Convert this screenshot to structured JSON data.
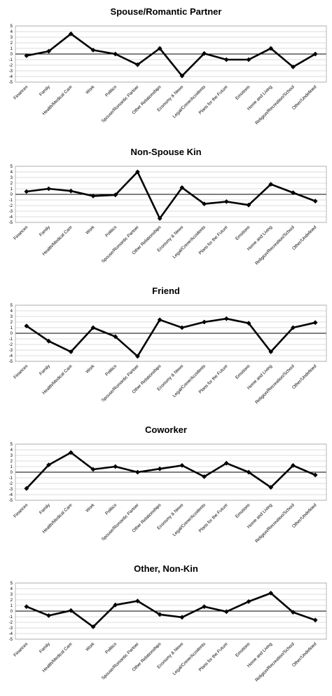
{
  "chart_data": [
    {
      "type": "line",
      "title": "Spouse/Romantic Partner",
      "ylim": [
        -5,
        5
      ],
      "yticks": [
        "5",
        "4",
        "3",
        "2",
        "1",
        "0",
        "-1",
        "-2",
        "-3",
        "-4",
        "-5"
      ],
      "grid": true,
      "categories": [
        "Finances",
        "Family",
        "Health/Medical Care",
        "Work",
        "Politics",
        "Spouse/Romantic Partner",
        "Other Relationships",
        "Economy & News",
        "Legal/Crime/Accidents",
        "Plans for the Future",
        "Emotions",
        "Home and Living",
        "Religion/Recreation/School",
        "Other/Undefined"
      ],
      "values": [
        -0.3,
        0.5,
        3.6,
        0.7,
        0.0,
        -1.9,
        1.0,
        -3.9,
        0.1,
        -1.0,
        -1.0,
        1.0,
        -2.3,
        0.0
      ]
    },
    {
      "type": "line",
      "title": "Non-Spouse Kin",
      "ylim": [
        -5,
        5
      ],
      "yticks": [
        "5",
        "4",
        "3",
        "2",
        "1",
        "0",
        "-1",
        "-2",
        "-3",
        "-4",
        "-5"
      ],
      "grid": true,
      "categories": [
        "Finances",
        "Family",
        "Health/Medical Care",
        "Work",
        "Politics",
        "Spouse/Romantic Partner",
        "Other Relationships",
        "Economy & News",
        "Legal/Crime/Accidents",
        "Plans for the Future",
        "Emotions",
        "Home and Living",
        "Religion/Recreation/School",
        "Other/Undefined"
      ],
      "values": [
        0.5,
        1.0,
        0.6,
        -0.3,
        -0.1,
        4.0,
        -4.3,
        1.2,
        -1.7,
        -1.3,
        -1.9,
        1.8,
        0.3,
        -1.2
      ]
    },
    {
      "type": "line",
      "title": "Friend",
      "ylim": [
        -5,
        5
      ],
      "yticks": [
        "5",
        "4",
        "3",
        "2",
        "1",
        "0",
        "-1",
        "-2",
        "-3",
        "-4",
        "-5"
      ],
      "grid": true,
      "categories": [
        "Finances",
        "Family",
        "Health/Medical Care",
        "Work",
        "Politics",
        "Spouse/Romantic Partner",
        "Other Relationships",
        "Economy & News",
        "Legal/Crime/Accidents",
        "Plans for the Future",
        "Emotions",
        "Home and Living",
        "Religion/Recreation/School",
        "Other/Undefined"
      ],
      "values": [
        1.3,
        -1.4,
        -3.3,
        1.0,
        -0.6,
        -4.1,
        2.4,
        1.0,
        2.0,
        2.6,
        1.8,
        -3.3,
        1.0,
        1.9
      ]
    },
    {
      "type": "line",
      "title": "Coworker",
      "ylim": [
        -5,
        5
      ],
      "yticks": [
        "5",
        "4",
        "3",
        "2",
        "1",
        "0",
        "-1",
        "-2",
        "-3",
        "-4",
        "-5"
      ],
      "grid": true,
      "categories": [
        "Finances",
        "Family",
        "Health/Medical Care",
        "Work",
        "Politics",
        "Spouse/Romantic Partner",
        "Other Relationships",
        "Economy & News",
        "Legal/Crime/Accidents",
        "Plans for the Future",
        "Emotions",
        "Home and Living",
        "Religion/Recreation/School",
        "Other/Undefined"
      ],
      "values": [
        -2.9,
        1.3,
        3.5,
        0.5,
        1.0,
        0.0,
        0.6,
        1.2,
        -0.8,
        1.6,
        0.0,
        -2.7,
        1.2,
        -0.5
      ]
    },
    {
      "type": "line",
      "title": "Other, Non-Kin",
      "ylim": [
        -5,
        5
      ],
      "yticks": [
        "5",
        "4",
        "3",
        "2",
        "1",
        "0",
        "-1",
        "-2",
        "-3",
        "-4",
        "-5"
      ],
      "grid": true,
      "categories": [
        "Finances",
        "Family",
        "Health/Medical Care",
        "Work",
        "Politics",
        "Spouse/Romantic Partner",
        "Other Relationships",
        "Economy & News",
        "Legal/Crime/Accidents",
        "Plans for the Future",
        "Emotions",
        "Home and Living",
        "Religion/Recreation/School",
        "Other/Undefined"
      ],
      "values": [
        0.8,
        -0.8,
        0.1,
        -2.8,
        1.1,
        1.8,
        -0.6,
        -1.1,
        0.8,
        -0.1,
        1.7,
        3.2,
        -0.2,
        -1.6
      ]
    }
  ]
}
